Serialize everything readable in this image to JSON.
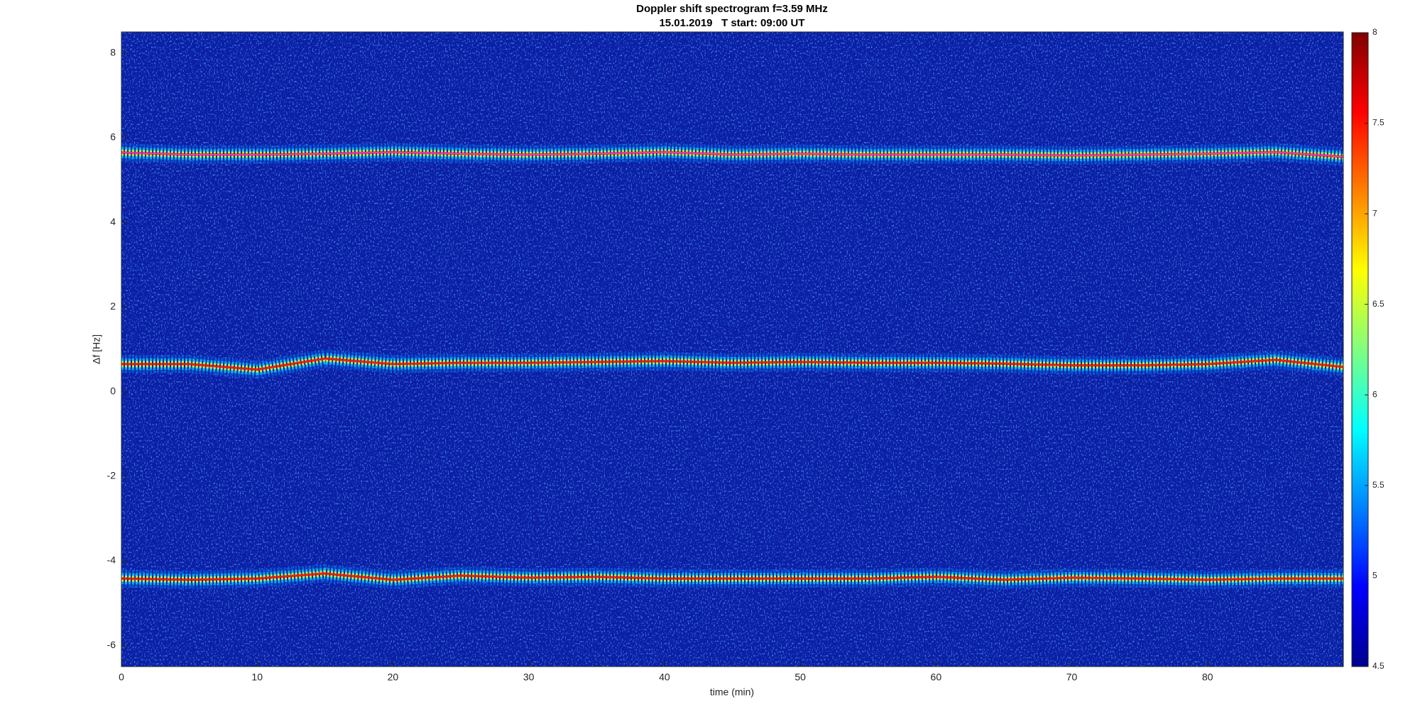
{
  "chart_data": {
    "type": "spectrogram",
    "title": "Doppler shift spectrogram f=3.59 MHz",
    "subtitle": "15.01.2019   T start: 09:00 UT",
    "x_label": "time (min)",
    "y_label": "Δf [Hz]",
    "xlim": [
      0,
      90
    ],
    "ylim": [
      -6.5,
      8.5
    ],
    "xticks": [
      0,
      10,
      20,
      30,
      40,
      50,
      60,
      70,
      80
    ],
    "yticks": [
      -6,
      -4,
      -2,
      0,
      2,
      4,
      6,
      8
    ],
    "clim": [
      4.5,
      8
    ],
    "cticks": [
      4.5,
      5,
      5.5,
      6,
      6.5,
      7,
      7.5,
      8
    ],
    "colormap": [
      "#00008f",
      "#0000ff",
      "#0080ff",
      "#00ffff",
      "#80ff80",
      "#ffff00",
      "#ff8000",
      "#ff0000",
      "#800000"
    ],
    "background": "#0b1fa6",
    "x": [
      0,
      5,
      10,
      15,
      20,
      25,
      30,
      35,
      40,
      45,
      50,
      55,
      60,
      65,
      70,
      75,
      80,
      85,
      90
    ],
    "series": [
      {
        "color": "#ff40d0",
        "values": [
          5.65,
          5.6,
          5.6,
          5.62,
          5.66,
          5.62,
          5.6,
          5.62,
          5.66,
          5.6,
          5.62,
          5.6,
          5.6,
          5.6,
          5.58,
          5.6,
          5.62,
          5.66,
          5.55
        ]
      },
      {
        "color": "#ff1a00",
        "values": [
          0.65,
          0.65,
          0.52,
          0.78,
          0.65,
          0.68,
          0.68,
          0.7,
          0.72,
          0.68,
          0.7,
          0.68,
          0.68,
          0.66,
          0.62,
          0.62,
          0.65,
          0.75,
          0.58
        ]
      },
      {
        "color": "#ff1a00",
        "values": [
          -4.42,
          -4.45,
          -4.42,
          -4.3,
          -4.45,
          -4.35,
          -4.4,
          -4.38,
          -4.42,
          -4.42,
          -4.42,
          -4.42,
          -4.38,
          -4.45,
          -4.4,
          -4.42,
          -4.45,
          -4.42,
          -4.42
        ]
      }
    ]
  }
}
